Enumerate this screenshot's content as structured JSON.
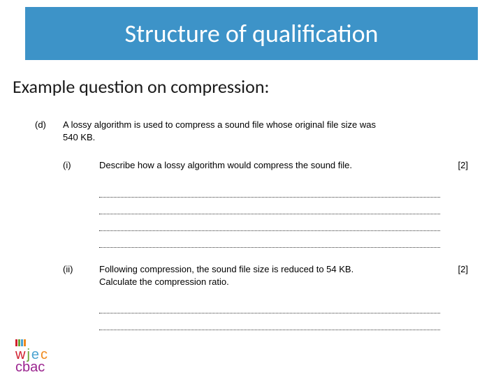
{
  "title": "Structure of qualification",
  "subtitle": "Example question on compression:",
  "question": {
    "letter": "(d)",
    "stem_line1": "A lossy algorithm is used to compress a sound file whose original file size was",
    "stem_line2": "540 KB.",
    "parts": [
      {
        "num": "(i)",
        "text": "Describe how a lossy algorithm would compress the sound file.",
        "marks": "[2]",
        "answer_lines": 4
      },
      {
        "num": "(ii)",
        "text_line1": "Following compression, the sound file size is reduced to 54 KB.",
        "text_line2": "Calculate the compression ratio.",
        "marks": "[2]",
        "answer_lines": 2
      }
    ]
  },
  "logo": {
    "w": "w",
    "j": "j",
    "e": "e",
    "c": "c",
    "cbac": "cbac"
  },
  "colors": {
    "title_bg": "#3d93c8",
    "title_fg": "#ffffff",
    "body_fg": "#1a1a1a"
  }
}
